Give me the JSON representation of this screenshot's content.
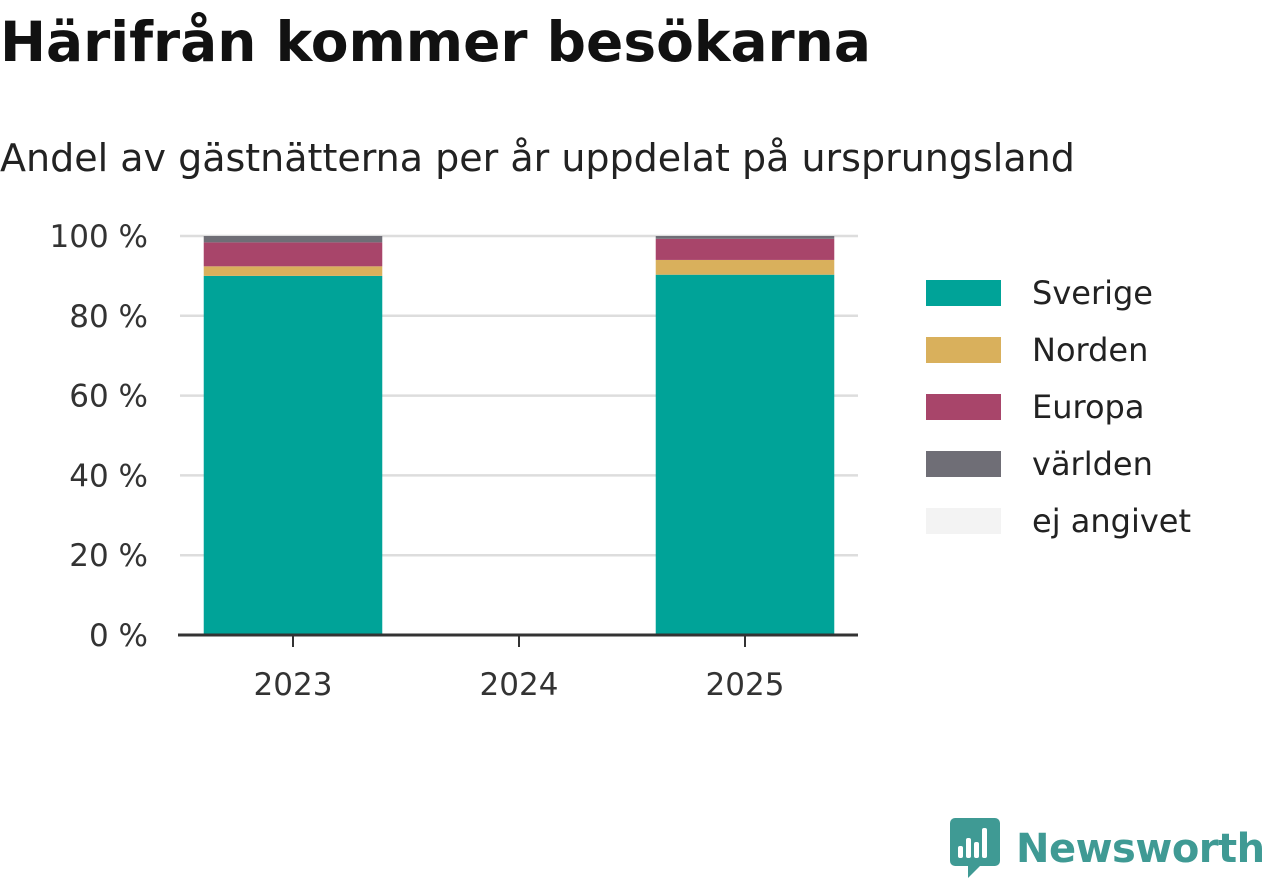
{
  "chart_data": {
    "type": "bar",
    "stacked": true,
    "title": "Härifrån kommer besökarna",
    "subtitle": "Andel av gästnätterna per år uppdelat på ursprungsland",
    "categories": [
      "2023",
      "2024",
      "2025"
    ],
    "series": [
      {
        "name": "Sverige",
        "color": "#00a398",
        "values": [
          90.0,
          null,
          90.3
        ]
      },
      {
        "name": "Norden",
        "color": "#d9b05c",
        "values": [
          2.4,
          null,
          3.7
        ]
      },
      {
        "name": "Europa",
        "color": "#a8456a",
        "values": [
          6.0,
          null,
          5.3
        ]
      },
      {
        "name": "världen",
        "color": "#6f6e76",
        "values": [
          1.6,
          null,
          0.7
        ]
      },
      {
        "name": "ej angivet",
        "color": "#f3f3f3",
        "values": [
          0.0,
          null,
          0.0
        ]
      }
    ],
    "yticks": [
      "0 %",
      "20 %",
      "40 %",
      "60 %",
      "80 %",
      "100 %"
    ],
    "ylim": [
      0,
      100
    ],
    "grid": true,
    "legend_position": "right"
  },
  "colors": {
    "grid": "#dddddd",
    "axis": "#333333",
    "brand": "#3f9a94"
  },
  "brand": {
    "name": "Newsworthy",
    "icon": "newsworthy-logo-icon"
  }
}
